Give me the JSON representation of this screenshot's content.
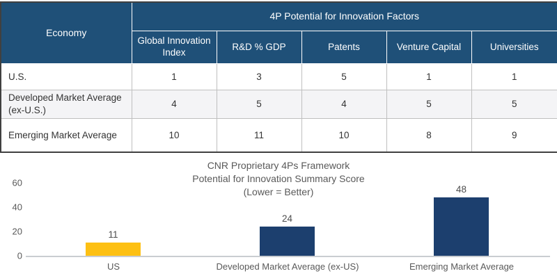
{
  "colors": {
    "table_header_bg": "#1F5078",
    "table_header_text": "#FFFFFF",
    "row_alt_bg": "#F4F4F6",
    "table_outer_border": "#404040",
    "table_inner_border": "#BFBFBF",
    "bar_gold": "#FDC013",
    "bar_navy": "#1C3F6E",
    "axis_line": "#C9CDD1",
    "chart_text": "#595959"
  },
  "table": {
    "corner_header": "Economy",
    "group_header": "4P Potential for Innovation Factors",
    "columns": [
      "Global Innovation Index",
      "R&D % GDP",
      "Patents",
      "Venture Capital",
      "Universities"
    ],
    "rows": [
      {
        "label": "U.S.",
        "values": [
          1,
          3,
          5,
          1,
          1
        ]
      },
      {
        "label": "Developed Market Average (ex-U.S.)",
        "values": [
          4,
          5,
          4,
          5,
          5
        ]
      },
      {
        "label": "Emerging Market Average",
        "values": [
          10,
          11,
          10,
          8,
          9
        ]
      }
    ]
  },
  "chart_data": {
    "type": "bar",
    "title": "CNR Proprietary 4Ps Framework Potential for Innovation Summary Score (Lower = Better)",
    "title_lines": [
      "CNR Proprietary 4Ps Framework",
      "Potential for Innovation  Summary Score",
      "(Lower = Better)"
    ],
    "categories": [
      "US",
      "Developed Market Average (ex-US)",
      "Emerging Market Average"
    ],
    "values": [
      11,
      24,
      48
    ],
    "bar_colors": [
      "#FDC013",
      "#1C3F6E",
      "#1C3F6E"
    ],
    "yticks": [
      0,
      20,
      40,
      60
    ],
    "ylim": [
      0,
      60
    ],
    "xlabel": "",
    "ylabel": "",
    "grid": false,
    "legend": false
  }
}
